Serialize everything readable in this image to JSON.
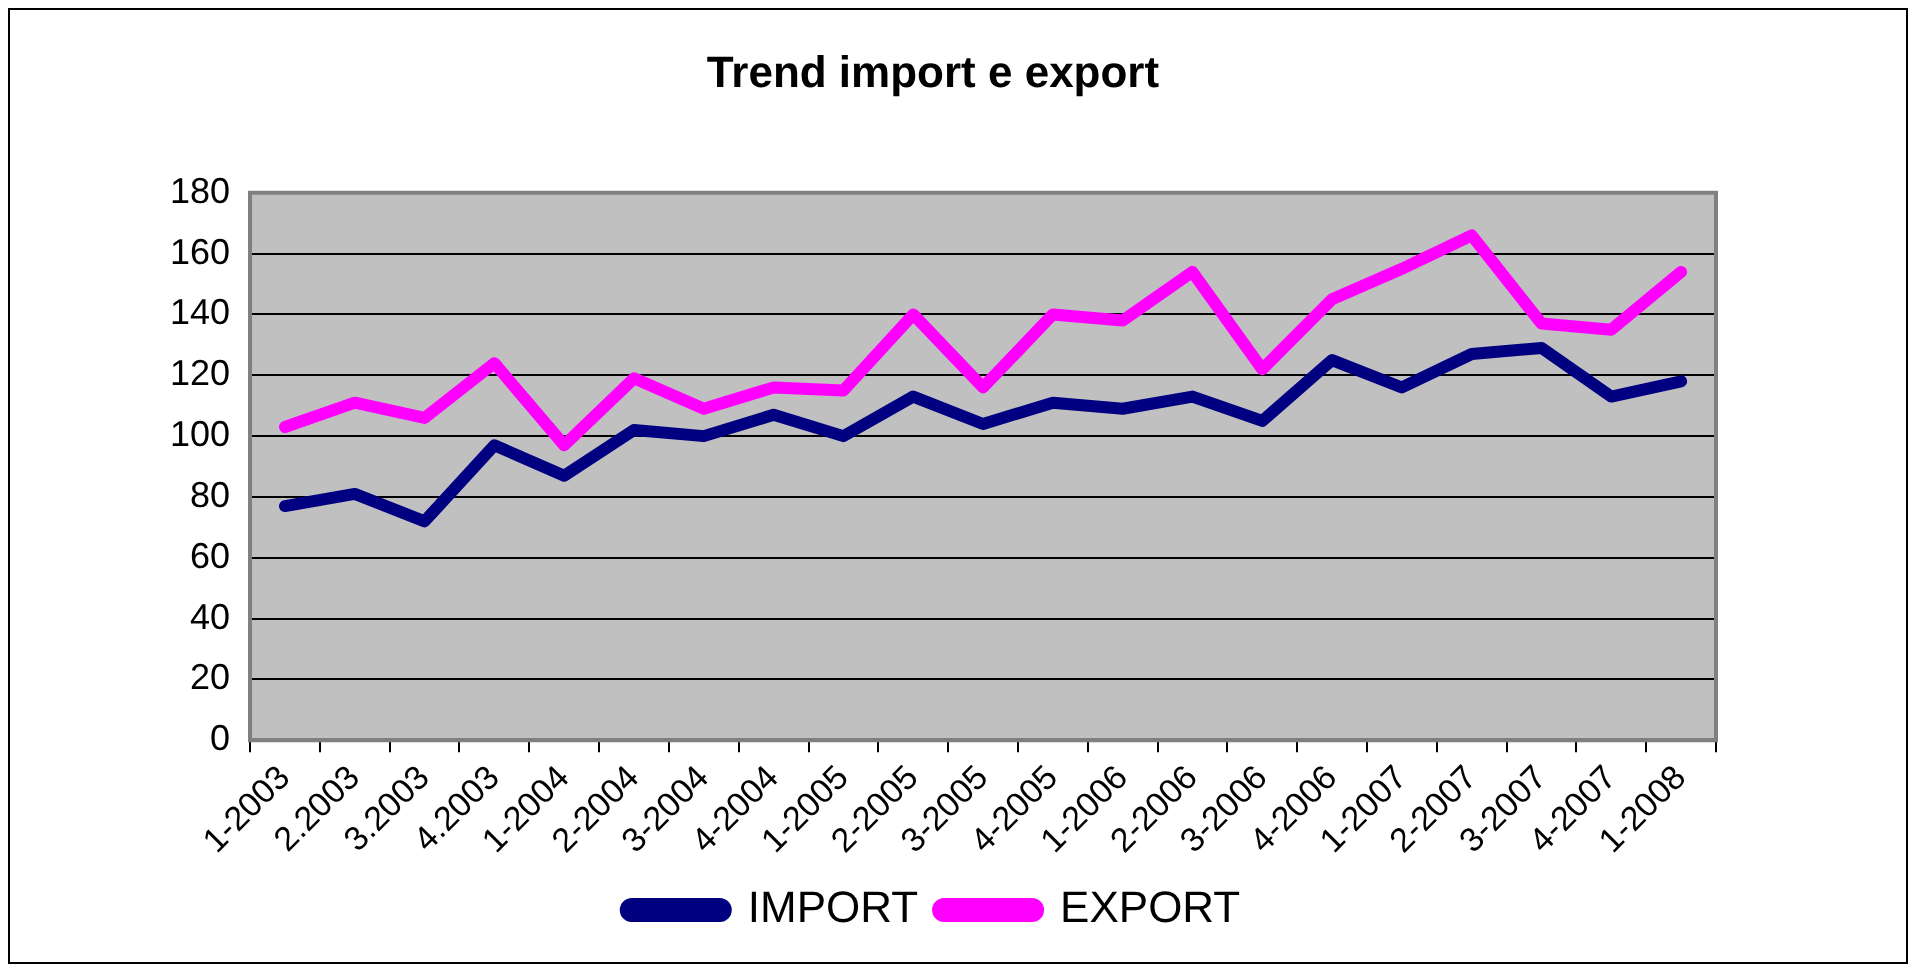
{
  "chart_data": {
    "type": "line",
    "title": "Trend import e export",
    "categories": [
      "1-2003",
      "2.2003",
      "3.2003",
      "4.2003",
      "1-2004",
      "2-2004",
      "3-2004",
      "4-2004",
      "1-2005",
      "2-2005",
      "3-2005",
      "4-2005",
      "1-2006",
      "2-2006",
      "3-2006",
      "4-2006",
      "1-2007",
      "2-2007",
      "3-2007",
      "4-2007",
      "1-2008"
    ],
    "series": [
      {
        "name": "IMPORT",
        "color": "#000080",
        "values": [
          77,
          81,
          72,
          97,
          87,
          102,
          100,
          107,
          100,
          113,
          104,
          111,
          109,
          113,
          105,
          125,
          116,
          127,
          129,
          113,
          118
        ]
      },
      {
        "name": "EXPORT",
        "color": "#ff00ff",
        "values": [
          103,
          111,
          106,
          124,
          97,
          119,
          109,
          116,
          115,
          140,
          116,
          140,
          138,
          154,
          122,
          145,
          155,
          166,
          137,
          135,
          154
        ]
      }
    ],
    "ylim": [
      0,
      180
    ],
    "yticks": [
      0,
      20,
      40,
      60,
      80,
      100,
      120,
      140,
      160,
      180
    ],
    "grid": "y",
    "legend": "bottom",
    "marker": "none",
    "line_style": "solid"
  }
}
